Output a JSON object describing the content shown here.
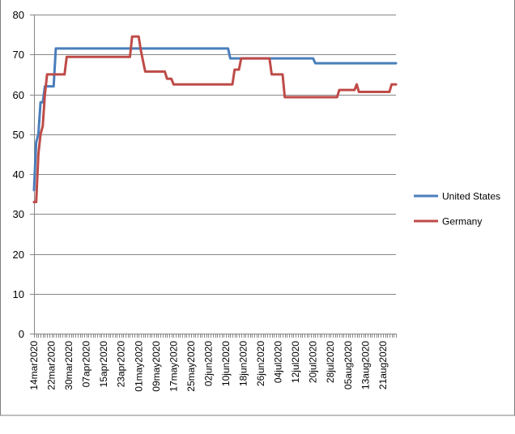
{
  "chart_data": {
    "type": "line",
    "title": "",
    "xlabel": "",
    "ylabel": "",
    "ylim": [
      0,
      80
    ],
    "yticks": [
      0,
      10,
      20,
      30,
      40,
      50,
      60,
      70,
      80
    ],
    "grid": "horizontal",
    "legend_position": "right",
    "x_tick_labels": [
      "14mar2020",
      "22mar2020",
      "30mar2020",
      "07apr2020",
      "15apr2020",
      "23apr2020",
      "01may2020",
      "09may2020",
      "17may2020",
      "25may2020",
      "02jun2020",
      "10jun2020",
      "18jun2020",
      "26jun2020",
      "04jul2020",
      "12jul2020",
      "20jul2020",
      "28jul2020",
      "05aug2020",
      "13aug2020",
      "21aug2020"
    ],
    "x_start": "2020-03-14",
    "x_end": "2020-08-27",
    "series": [
      {
        "name": "United States",
        "color": "#4a7ebb",
        "points": [
          [
            "2020-03-14",
            36
          ],
          [
            "2020-03-15",
            48
          ],
          [
            "2020-03-16",
            50
          ],
          [
            "2020-03-17",
            58
          ],
          [
            "2020-03-18",
            58
          ],
          [
            "2020-03-19",
            62
          ],
          [
            "2020-03-20",
            62
          ],
          [
            "2020-03-21",
            62
          ],
          [
            "2020-03-22",
            62
          ],
          [
            "2020-03-23",
            62
          ],
          [
            "2020-03-24",
            71.5
          ],
          [
            "2020-06-11",
            71.5
          ],
          [
            "2020-06-12",
            69
          ],
          [
            "2020-07-20",
            69
          ],
          [
            "2020-07-21",
            67.8
          ],
          [
            "2020-08-27",
            67.8
          ]
        ]
      },
      {
        "name": "Germany",
        "color": "#be4b48",
        "points": [
          [
            "2020-03-14",
            33
          ],
          [
            "2020-03-15",
            33
          ],
          [
            "2020-03-16",
            45
          ],
          [
            "2020-03-17",
            50
          ],
          [
            "2020-03-18",
            52
          ],
          [
            "2020-03-19",
            60
          ],
          [
            "2020-03-20",
            65
          ],
          [
            "2020-03-21",
            65
          ],
          [
            "2020-03-28",
            65
          ],
          [
            "2020-03-29",
            69.4
          ],
          [
            "2020-04-27",
            69.4
          ],
          [
            "2020-04-28",
            74.5
          ],
          [
            "2020-05-01",
            74.5
          ],
          [
            "2020-05-02",
            71
          ],
          [
            "2020-05-04",
            65.7
          ],
          [
            "2020-05-13",
            65.7
          ],
          [
            "2020-05-14",
            63.9
          ],
          [
            "2020-05-16",
            63.9
          ],
          [
            "2020-05-17",
            62.5
          ],
          [
            "2020-06-13",
            62.5
          ],
          [
            "2020-06-14",
            66.2
          ],
          [
            "2020-06-16",
            66.2
          ],
          [
            "2020-06-17",
            69
          ],
          [
            "2020-06-30",
            69
          ],
          [
            "2020-07-01",
            65
          ],
          [
            "2020-07-06",
            65
          ],
          [
            "2020-07-07",
            59.3
          ],
          [
            "2020-07-31",
            59.3
          ],
          [
            "2020-08-01",
            61.1
          ],
          [
            "2020-08-08",
            61.1
          ],
          [
            "2020-08-09",
            62.5
          ],
          [
            "2020-08-10",
            60.6
          ],
          [
            "2020-08-24",
            60.6
          ],
          [
            "2020-08-25",
            62.5
          ],
          [
            "2020-08-27",
            62.5
          ]
        ]
      }
    ]
  }
}
